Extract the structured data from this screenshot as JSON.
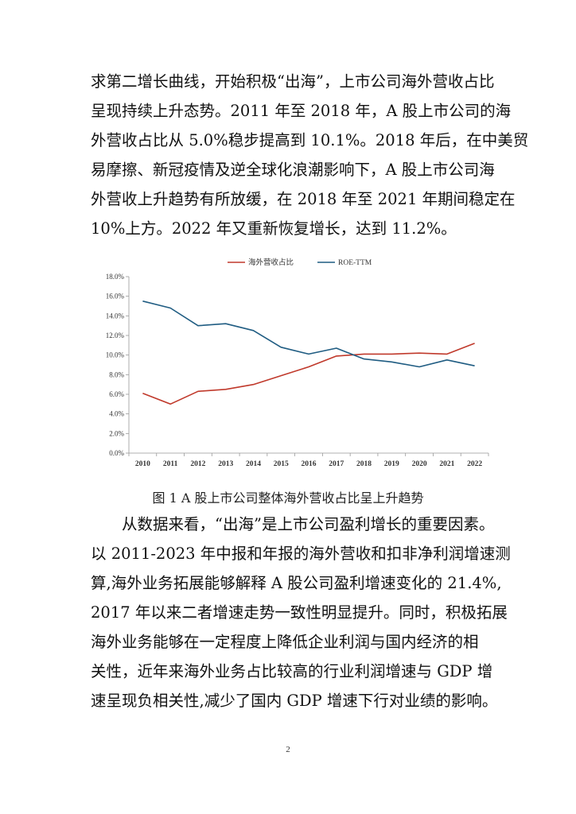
{
  "paragraph1": [
    "求第二增长曲线，开始积极“出海”，上市公司海外营收占比",
    "呈现持续上升态势。2011 年至 2018 年，A 股上市公司的海",
    "外营收占比从 5.0%稳步提高到 10.1%。2018 年后，在中美贸",
    "易摩擦、新冠疫情及逆全球化浪潮影响下，A 股上市公司海",
    "外营收上升趋势有所放缓，在 2018 年至 2021 年期间稳定在",
    "10%上方。2022 年又重新恢复增长，达到 11.2%。"
  ],
  "chart_data": {
    "type": "line",
    "title": "",
    "xlabel": "",
    "ylabel": "",
    "categories": [
      "2010",
      "2011",
      "2012",
      "2013",
      "2014",
      "2015",
      "2016",
      "2017",
      "2018",
      "2019",
      "2020",
      "2021",
      "2022"
    ],
    "ylim": [
      0,
      18
    ],
    "ytick_labels": [
      "0.0%",
      "2.0%",
      "4.0%",
      "6.0%",
      "8.0%",
      "10.0%",
      "12.0%",
      "14.0%",
      "16.0%",
      "18.0%"
    ],
    "legend_position": "top-center",
    "grid": false,
    "series": [
      {
        "name": "海外营收占比",
        "color": "#c0392b",
        "values": [
          6.1,
          5.0,
          6.3,
          6.5,
          7.0,
          7.9,
          8.8,
          9.9,
          10.1,
          10.1,
          10.2,
          10.1,
          11.2
        ]
      },
      {
        "name": "ROE-TTM",
        "color": "#1f5c82",
        "values": [
          15.5,
          14.8,
          13.0,
          13.2,
          12.5,
          10.8,
          10.1,
          10.7,
          9.6,
          9.3,
          8.8,
          9.5,
          8.9
        ]
      }
    ]
  },
  "caption": "图 1 A 股上市公司整体海外营收占比呈上升趋势",
  "paragraph2": [
    "从数据来看，“出海”是上市公司盈利增长的重要因素。",
    "以 2011-2023 年中报和年报的海外营收和扣非净利润增速测",
    "算,海外业务拓展能够解释 A 股公司盈利增速变化的 21.4%,",
    "2017 年以来二者增速走势一致性明显提升。同时，积极拓展",
    "海外业务能够在一定程度上降低企业利润与国内经济的相",
    "关性，近年来海外业务占比较高的行业利润增速与  GDP  增",
    "速呈现负相关性,减少了国内 GDP 增速下行对业绩的影响。"
  ],
  "page_number": "2"
}
